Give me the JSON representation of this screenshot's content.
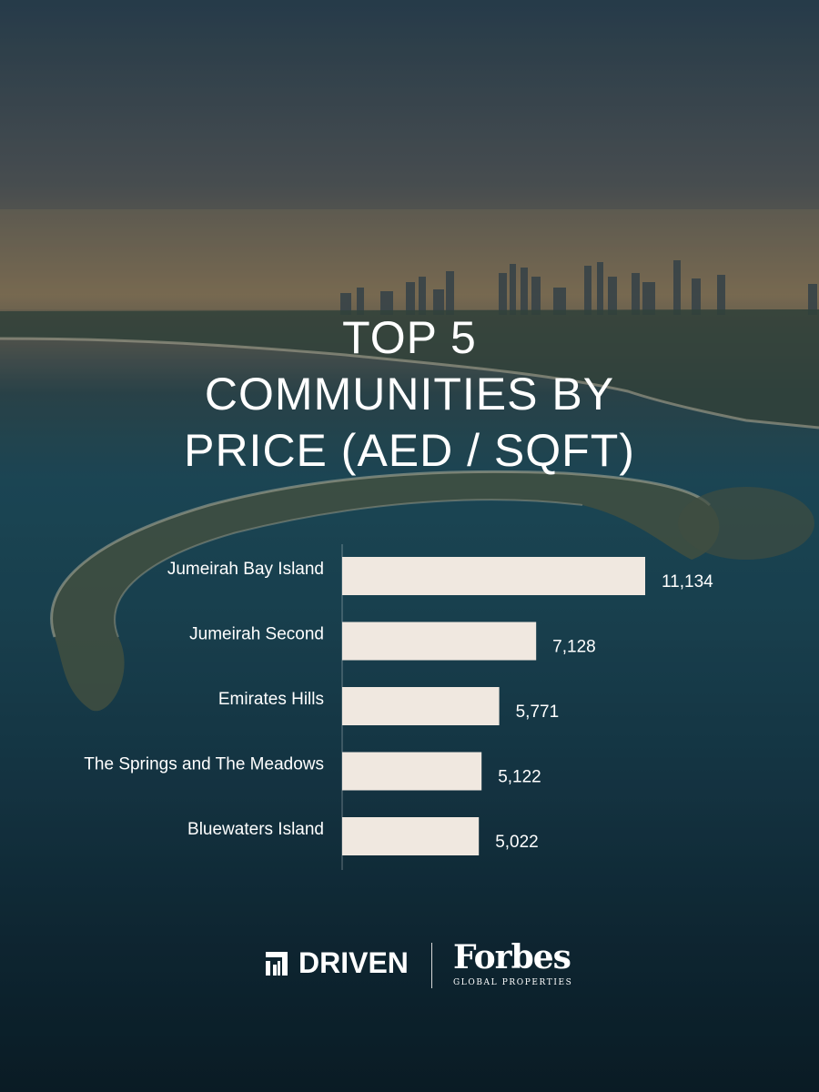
{
  "title_lines": [
    "TOP 5",
    "COMMUNITIES BY",
    "PRICE (AED / SQFT)"
  ],
  "chart_data": {
    "type": "bar",
    "orientation": "horizontal",
    "title": "TOP 5 COMMUNITIES BY PRICE (AED / SQFT)",
    "categories": [
      "Jumeirah Bay Island",
      "Jumeirah Second",
      "Emirates Hills",
      "The Springs and The Meadows",
      "Bluewaters Island"
    ],
    "values": [
      11134,
      7128,
      5771,
      5122,
      5022
    ],
    "value_labels": [
      "11,134",
      "7,128",
      "5,771",
      "5,122",
      "5,022"
    ],
    "xlim": [
      0,
      11134
    ],
    "grid": false,
    "legend": "none",
    "bar_color": "#f0e8e0"
  },
  "footer": {
    "brand_1": "DRIVEN",
    "brand_2": "Forbes",
    "brand_2_sub": "GLOBAL PROPERTIES"
  },
  "icons": [
    "driven-logo-icon"
  ],
  "colors": {
    "bar": "#f0e8e0",
    "text": "#ffffff",
    "sea": "#1b4656"
  }
}
